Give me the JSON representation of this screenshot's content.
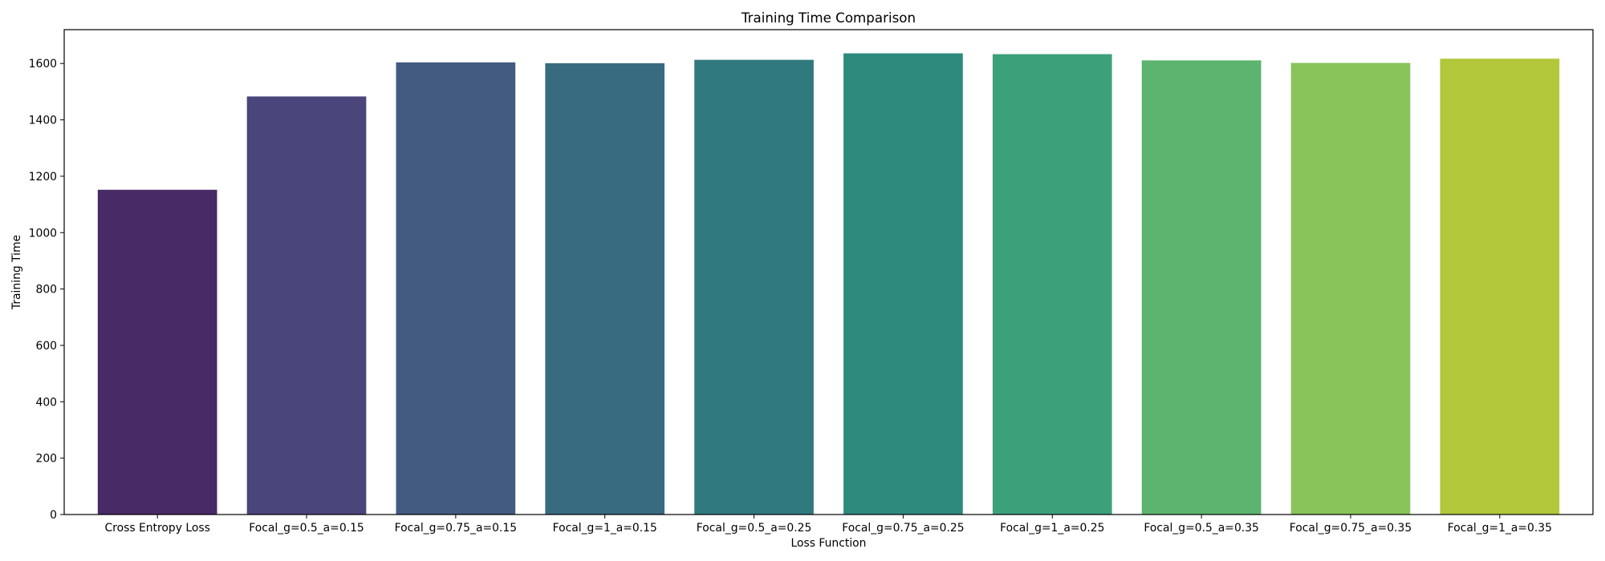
{
  "chart_data": {
    "type": "bar",
    "title": "Training Time Comparison",
    "xlabel": "Loss Function",
    "ylabel": "Training Time",
    "ylim": [
      0,
      1720
    ],
    "yticks": [
      0,
      200,
      400,
      600,
      800,
      1000,
      1200,
      1400,
      1600
    ],
    "grid": false,
    "categories": [
      "Cross Entropy Loss",
      "Focal_g=0.5_a=0.15",
      "Focal_g=0.75_a=0.15",
      "Focal_g=1_a=0.15",
      "Focal_g=0.5_a=0.25",
      "Focal_g=0.75_a=0.25",
      "Focal_g=1_a=0.25",
      "Focal_g=0.5_a=0.35",
      "Focal_g=0.75_a=0.35",
      "Focal_g=1_a=0.35"
    ],
    "values": [
      1152,
      1483,
      1604,
      1601,
      1613,
      1636,
      1633,
      1611,
      1602,
      1617
    ],
    "colors": [
      "#482a66",
      "#4a467c",
      "#435b81",
      "#396b80",
      "#30797f",
      "#2e8a7d",
      "#3ca07a",
      "#5db46e",
      "#89c45b",
      "#b2c73a"
    ]
  }
}
